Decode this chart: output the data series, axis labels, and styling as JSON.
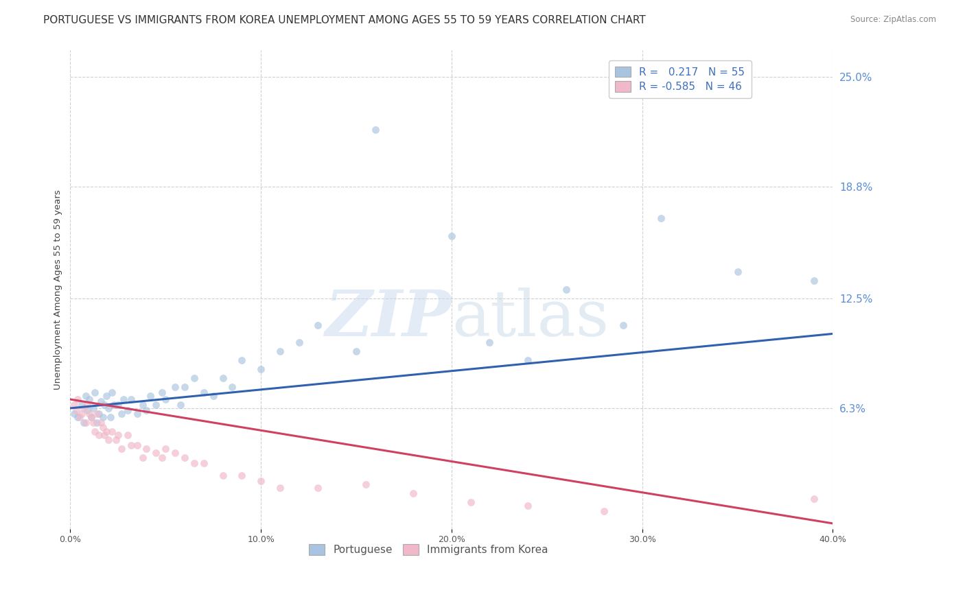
{
  "title": "PORTUGUESE VS IMMIGRANTS FROM KOREA UNEMPLOYMENT AMONG AGES 55 TO 59 YEARS CORRELATION CHART",
  "source": "Source: ZipAtlas.com",
  "ylabel": "Unemployment Among Ages 55 to 59 years",
  "xlim": [
    0.0,
    0.4
  ],
  "ylim": [
    -0.005,
    0.265
  ],
  "right_ytick_labels": [
    "6.3%",
    "12.5%",
    "18.8%",
    "25.0%"
  ],
  "right_ytick_values": [
    0.063,
    0.125,
    0.188,
    0.25
  ],
  "xtick_labels": [
    "0.0%",
    "10.0%",
    "20.0%",
    "30.0%",
    "40.0%"
  ],
  "xtick_values": [
    0.0,
    0.1,
    0.2,
    0.3,
    0.4
  ],
  "watermark": "ZIPatlas",
  "legend_blue_label": "Portuguese",
  "legend_pink_label": "Immigrants from Korea",
  "blue_R": "0.217",
  "blue_N": "55",
  "pink_R": "-0.585",
  "pink_N": "46",
  "blue_color": "#a8c4e0",
  "pink_color": "#f0b8c8",
  "blue_line_color": "#3060b0",
  "pink_line_color": "#d04060",
  "blue_scatter_x": [
    0.002,
    0.004,
    0.006,
    0.007,
    0.008,
    0.009,
    0.01,
    0.011,
    0.012,
    0.013,
    0.014,
    0.015,
    0.016,
    0.017,
    0.018,
    0.019,
    0.02,
    0.021,
    0.022,
    0.023,
    0.025,
    0.027,
    0.028,
    0.03,
    0.032,
    0.035,
    0.038,
    0.04,
    0.042,
    0.045,
    0.048,
    0.05,
    0.055,
    0.058,
    0.06,
    0.065,
    0.07,
    0.075,
    0.08,
    0.085,
    0.09,
    0.1,
    0.11,
    0.12,
    0.13,
    0.15,
    0.16,
    0.2,
    0.22,
    0.24,
    0.26,
    0.29,
    0.31,
    0.35,
    0.39
  ],
  "blue_scatter_y": [
    0.06,
    0.058,
    0.065,
    0.055,
    0.07,
    0.062,
    0.068,
    0.058,
    0.063,
    0.072,
    0.055,
    0.06,
    0.067,
    0.058,
    0.065,
    0.07,
    0.063,
    0.058,
    0.072,
    0.065,
    0.065,
    0.06,
    0.068,
    0.062,
    0.068,
    0.06,
    0.065,
    0.062,
    0.07,
    0.065,
    0.072,
    0.068,
    0.075,
    0.065,
    0.075,
    0.08,
    0.072,
    0.07,
    0.08,
    0.075,
    0.09,
    0.085,
    0.095,
    0.1,
    0.11,
    0.095,
    0.22,
    0.16,
    0.1,
    0.09,
    0.13,
    0.11,
    0.17,
    0.14,
    0.135
  ],
  "pink_scatter_x": [
    0.002,
    0.003,
    0.004,
    0.005,
    0.006,
    0.007,
    0.008,
    0.009,
    0.01,
    0.011,
    0.012,
    0.013,
    0.014,
    0.015,
    0.016,
    0.017,
    0.018,
    0.019,
    0.02,
    0.022,
    0.024,
    0.025,
    0.027,
    0.03,
    0.032,
    0.035,
    0.038,
    0.04,
    0.045,
    0.048,
    0.05,
    0.055,
    0.06,
    0.065,
    0.07,
    0.08,
    0.09,
    0.1,
    0.11,
    0.13,
    0.155,
    0.18,
    0.21,
    0.24,
    0.28,
    0.39
  ],
  "pink_scatter_y": [
    0.065,
    0.062,
    0.068,
    0.058,
    0.06,
    0.063,
    0.055,
    0.065,
    0.06,
    0.058,
    0.055,
    0.05,
    0.06,
    0.048,
    0.055,
    0.052,
    0.048,
    0.05,
    0.045,
    0.05,
    0.045,
    0.048,
    0.04,
    0.048,
    0.042,
    0.042,
    0.035,
    0.04,
    0.038,
    0.035,
    0.04,
    0.038,
    0.035,
    0.032,
    0.032,
    0.025,
    0.025,
    0.022,
    0.018,
    0.018,
    0.02,
    0.015,
    0.01,
    0.008,
    0.005,
    0.012
  ],
  "blue_line_y_start": 0.063,
  "blue_line_y_end": 0.105,
  "pink_line_y_start": 0.068,
  "pink_line_y_end": -0.002,
  "background_color": "#ffffff",
  "grid_color": "#d0d0d0",
  "title_fontsize": 11,
  "axis_label_fontsize": 9.5,
  "tick_fontsize": 9,
  "scatter_size": 55,
  "scatter_alpha": 0.65
}
